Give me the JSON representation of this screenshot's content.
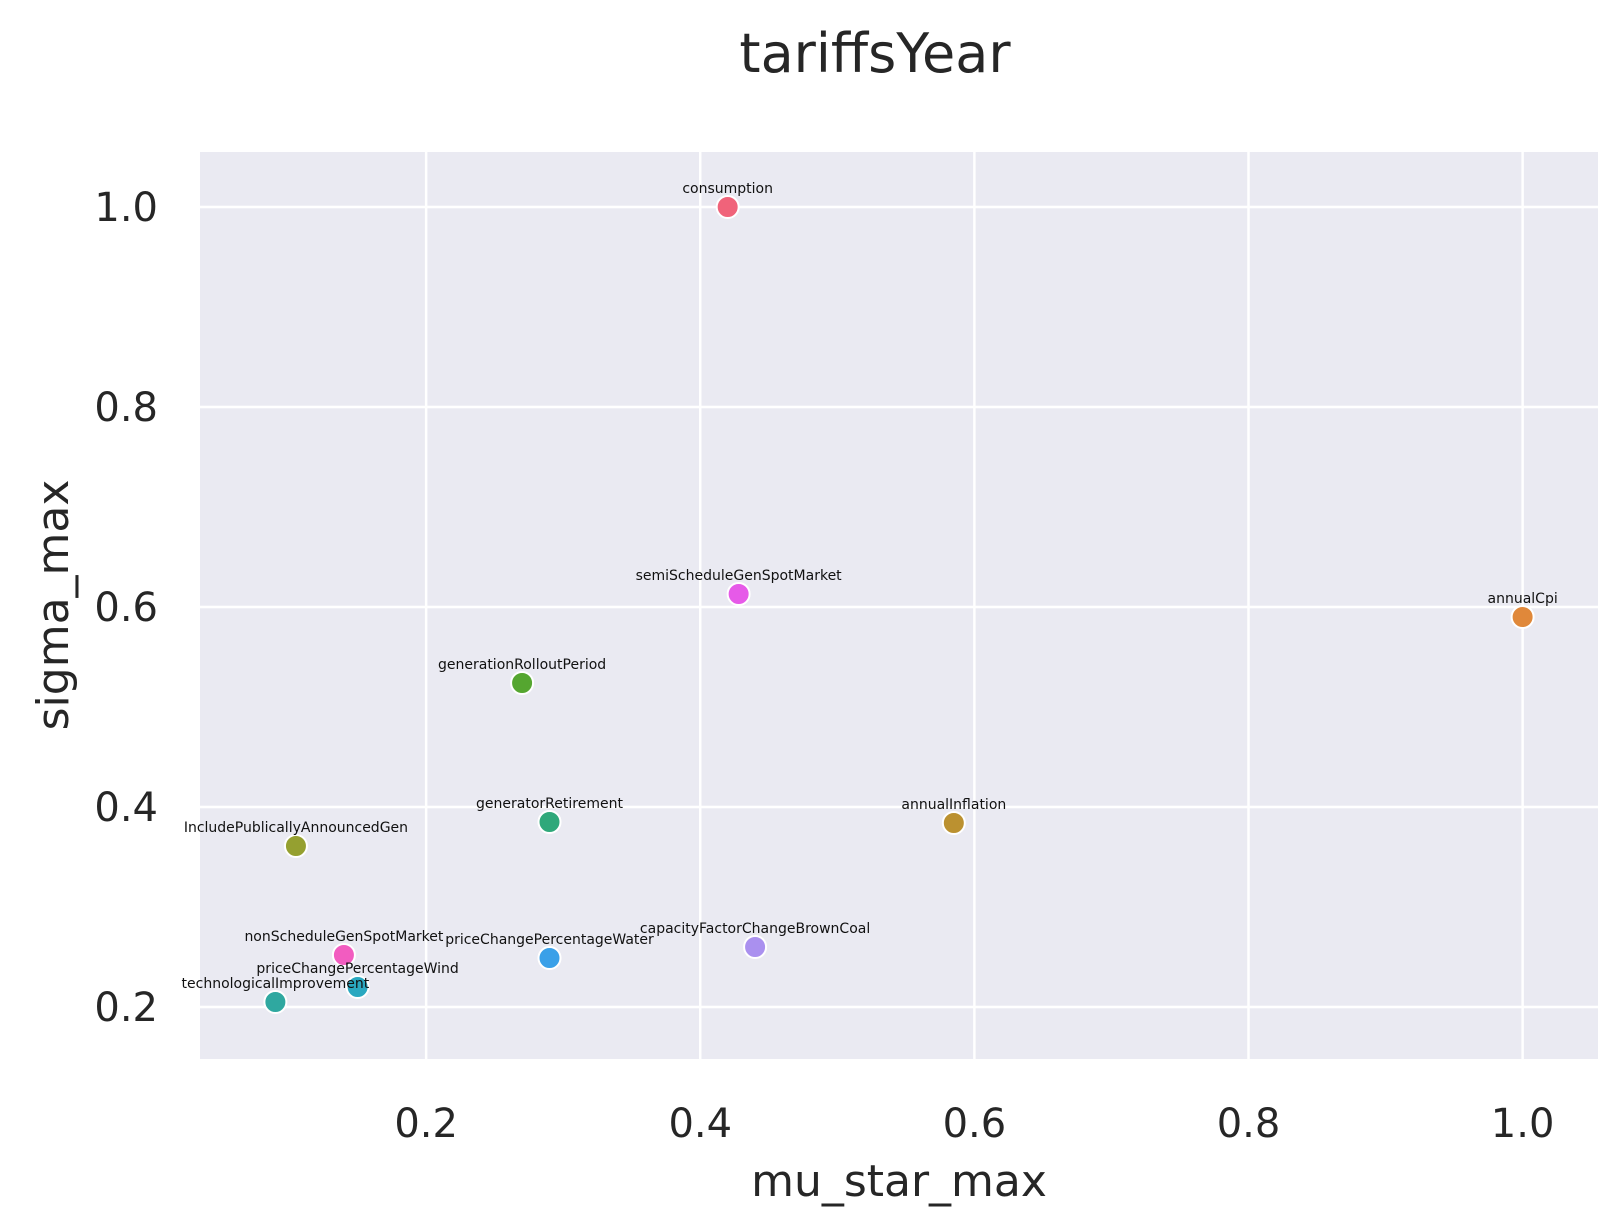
{
  "chart_data": {
    "type": "scatter",
    "title": "tariffsYear",
    "xlabel": "mu_star_max",
    "ylabel": "sigma_max",
    "xlim": [
      0.035,
      1.055
    ],
    "ylim": [
      0.148,
      1.055
    ],
    "xticks": [
      0.2,
      0.4,
      0.6,
      0.8,
      1.0
    ],
    "xtick_labels": [
      "0.2",
      "0.4",
      "0.6",
      "0.8",
      "1.0"
    ],
    "yticks": [
      0.2,
      0.4,
      0.6,
      0.8,
      1.0
    ],
    "ytick_labels": [
      "0.2",
      "0.4",
      "0.6",
      "0.8",
      "1.0"
    ],
    "grid": true,
    "points": [
      {
        "label": "consumption",
        "x": 0.42,
        "y": 1.0,
        "color": "#f0637a"
      },
      {
        "label": "semiScheduleGenSpotMarket",
        "x": 0.428,
        "y": 0.613,
        "color": "#e65ae8"
      },
      {
        "label": "annualCpi",
        "x": 1.0,
        "y": 0.59,
        "color": "#e0883a"
      },
      {
        "label": "generationRolloutPeriod",
        "x": 0.27,
        "y": 0.524,
        "color": "#55a630"
      },
      {
        "label": "generatorRetirement",
        "x": 0.29,
        "y": 0.385,
        "color": "#2fa87a"
      },
      {
        "label": "annualInflation",
        "x": 0.585,
        "y": 0.384,
        "color": "#bb9130"
      },
      {
        "label": "IncludePublicallyAnnouncedGen",
        "x": 0.105,
        "y": 0.361,
        "color": "#95a030"
      },
      {
        "label": "capacityFactorChangeBrownCoal",
        "x": 0.44,
        "y": 0.26,
        "color": "#aa90ef"
      },
      {
        "label": "priceChangePercentageWater",
        "x": 0.29,
        "y": 0.249,
        "color": "#3aa0e8"
      },
      {
        "label": "nonScheduleGenSpotMarket",
        "x": 0.14,
        "y": 0.252,
        "color": "#f25cc0"
      },
      {
        "label": "priceChangePercentageWind",
        "x": 0.15,
        "y": 0.22,
        "color": "#2aa8c0"
      },
      {
        "label": "technologicalImprovement",
        "x": 0.09,
        "y": 0.205,
        "color": "#2fa8a0"
      }
    ]
  }
}
